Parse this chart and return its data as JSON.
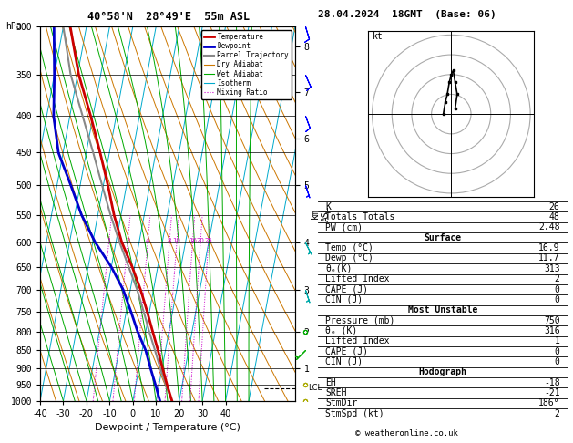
{
  "title_left": "40°58'N  28°49'E  55m ASL",
  "title_right": "28.04.2024  18GMT  (Base: 06)",
  "copyright": "© weatheronline.co.uk",
  "skewt": {
    "pressure_levels": [
      1000,
      950,
      900,
      850,
      800,
      750,
      700,
      650,
      600,
      550,
      500,
      450,
      400,
      350,
      300
    ],
    "temp_C": [
      16.9,
      13.5,
      10.2,
      6.8,
      3.0,
      -1.0,
      -5.5,
      -11.0,
      -17.5,
      -23.0,
      -28.0,
      -34.0,
      -41.0,
      -49.5,
      -57.0
    ],
    "dewp_C": [
      11.7,
      8.5,
      5.0,
      1.5,
      -3.5,
      -8.0,
      -13.0,
      -20.0,
      -29.0,
      -37.0,
      -44.0,
      -52.0,
      -57.0,
      -60.0,
      -64.0
    ],
    "parcel_C": [
      16.9,
      13.0,
      9.2,
      5.5,
      1.5,
      -2.5,
      -7.0,
      -12.5,
      -18.5,
      -24.5,
      -30.5,
      -37.0,
      -44.5,
      -53.0,
      -60.0
    ],
    "xmin": -40,
    "xmax": 40,
    "pmin": 300,
    "pmax": 1000,
    "skew_factor": 30,
    "lcl_pressure": 960,
    "km_ticks": [
      1,
      2,
      3,
      4,
      5,
      6,
      7,
      8
    ],
    "km_pressures": [
      900,
      800,
      700,
      600,
      500,
      430,
      370,
      320
    ],
    "mixing_ratio_values": [
      1,
      2,
      4,
      8,
      10,
      16,
      20,
      25
    ]
  },
  "hodograph": {
    "u": [
      1.0,
      1.5,
      1.0,
      0.5,
      0.0,
      -0.5,
      -1.0,
      -1.5,
      -2.0
    ],
    "v": [
      1.5,
      5.0,
      8.0,
      11.0,
      10.0,
      8.0,
      5.0,
      3.0,
      0.0
    ],
    "circles": [
      5,
      10,
      15,
      20
    ],
    "title": "kt"
  },
  "wind_barbs": {
    "pressures": [
      300,
      350,
      400,
      500,
      600,
      700,
      800,
      850,
      950,
      1000
    ],
    "u": [
      -3,
      -4,
      -3,
      -2,
      -2,
      -1,
      1,
      2,
      2,
      1
    ],
    "v": [
      10,
      9,
      8,
      6,
      4,
      3,
      2,
      2,
      1,
      1
    ],
    "colors": [
      "#0000ff",
      "#0000ff",
      "#0000ff",
      "#0000ff",
      "#00aaaa",
      "#00aaaa",
      "#00aa00",
      "#00aa00",
      "#aaaa00",
      "#aaaa00"
    ]
  },
  "sounding_indices": {
    "K": 26,
    "Totals_Totals": 48,
    "PW_cm": "2.48",
    "Surface_Temp": "16.9",
    "Surface_Dewp": "11.7",
    "Surface_theta_e": "313",
    "Surface_LiftedIndex": "2",
    "Surface_CAPE": "0",
    "Surface_CIN": "0",
    "MU_Pressure": "750",
    "MU_theta_e": "316",
    "MU_LiftedIndex": "1",
    "MU_CAPE": "0",
    "MU_CIN": "0",
    "EH": "-18",
    "SREH": "-21",
    "StmDir": "186°",
    "StmSpd": "2"
  },
  "legend_items": [
    {
      "label": "Temperature",
      "color": "#cc0000",
      "lw": 2,
      "ls": "solid"
    },
    {
      "label": "Dewpoint",
      "color": "#0000cc",
      "lw": 2,
      "ls": "solid"
    },
    {
      "label": "Parcel Trajectory",
      "color": "#888888",
      "lw": 1.5,
      "ls": "solid"
    },
    {
      "label": "Dry Adiabat",
      "color": "#cc7700",
      "lw": 0.8,
      "ls": "solid"
    },
    {
      "label": "Wet Adiabat",
      "color": "#00aa00",
      "lw": 0.8,
      "ls": "solid"
    },
    {
      "label": "Isotherm",
      "color": "#00aacc",
      "lw": 0.8,
      "ls": "solid"
    },
    {
      "label": "Mixing Ratio",
      "color": "#cc00cc",
      "lw": 0.8,
      "ls": "dotted"
    }
  ],
  "colors": {
    "temperature": "#cc0000",
    "dewpoint": "#0000cc",
    "parcel": "#888888",
    "dry_adiabat": "#cc7700",
    "wet_adiabat": "#00aa00",
    "isotherm": "#00aacc",
    "mixing_ratio": "#cc00cc"
  }
}
